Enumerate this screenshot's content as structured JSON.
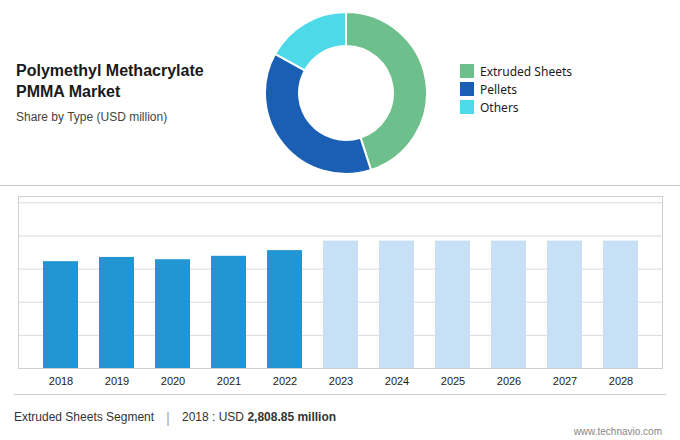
{
  "chart_data": [
    {
      "type": "pie",
      "title": "Polymethyl Methacrylate PMMA Market",
      "subtitle": "Share by Type (USD million)",
      "categories": [
        "Extruded Sheets",
        "Pellets",
        "Others"
      ],
      "values": [
        45,
        38,
        17
      ],
      "colors": [
        "#6dbf8b",
        "#1a5fb4",
        "#4dd9e8"
      ],
      "legend": "right"
    },
    {
      "type": "bar",
      "categories": [
        "2018",
        "2019",
        "2020",
        "2021",
        "2022",
        "2023",
        "2024",
        "2025",
        "2026",
        "2027",
        "2028"
      ],
      "values": [
        2808.85,
        2920,
        2860,
        2950,
        3100,
        3350,
        3350,
        3350,
        3350,
        3350,
        3350
      ],
      "colors": [
        "#2196d3",
        "#2196d3",
        "#2196d3",
        "#2196d3",
        "#2196d3",
        "#c8e0f5",
        "#c8e0f5",
        "#c8e0f5",
        "#c8e0f5",
        "#c8e0f5",
        "#c8e0f5"
      ],
      "ylim": [
        0,
        4522.5
      ],
      "yticks": [
        0,
        871,
        1742,
        2613,
        3484,
        4355
      ],
      "grid": true,
      "tick_labels": "x",
      "annotations": [
        "Extruded Sheets Segment",
        "|",
        "2018 : USD ",
        "2,808.85 million",
        "www.technavio.com"
      ]
    }
  ]
}
